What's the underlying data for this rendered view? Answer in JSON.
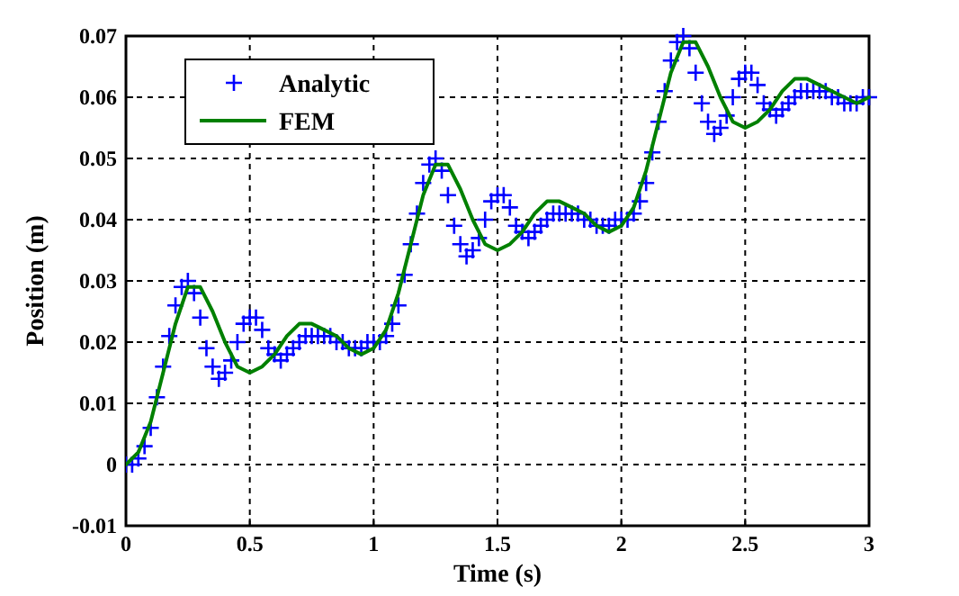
{
  "chart_data": {
    "type": "line",
    "xlabel": "Time (s)",
    "ylabel": "Position (m)",
    "xlim": [
      0,
      3
    ],
    "ylim": [
      -0.01,
      0.07
    ],
    "xticks": [
      0,
      0.5,
      1,
      1.5,
      2,
      2.5,
      3
    ],
    "yticks": [
      -0.01,
      0,
      0.01,
      0.02,
      0.03,
      0.04,
      0.05,
      0.06,
      0.07
    ],
    "grid": true,
    "legend": "top left",
    "series": [
      {
        "name": "Analytic",
        "type": "scatter",
        "marker": "cross",
        "color": "#0000ff",
        "x": [
          0,
          0.025,
          0.05,
          0.075,
          0.1,
          0.125,
          0.15,
          0.175,
          0.2,
          0.225,
          0.25,
          0.275,
          0.3,
          0.325,
          0.35,
          0.375,
          0.4,
          0.425,
          0.45,
          0.475,
          0.5,
          0.525,
          0.55,
          0.575,
          0.6,
          0.625,
          0.65,
          0.675,
          0.7,
          0.725,
          0.75,
          0.775,
          0.8,
          0.825,
          0.85,
          0.875,
          0.9,
          0.925,
          0.95,
          0.975,
          1,
          1.025,
          1.05,
          1.075,
          1.1,
          1.125,
          1.15,
          1.175,
          1.2,
          1.225,
          1.25,
          1.275,
          1.3,
          1.325,
          1.35,
          1.375,
          1.4,
          1.425,
          1.45,
          1.475,
          1.5,
          1.525,
          1.55,
          1.575,
          1.6,
          1.625,
          1.65,
          1.675,
          1.7,
          1.725,
          1.75,
          1.775,
          1.8,
          1.825,
          1.85,
          1.875,
          1.9,
          1.925,
          1.95,
          1.975,
          2,
          2.025,
          2.05,
          2.075,
          2.1,
          2.125,
          2.15,
          2.175,
          2.2,
          2.225,
          2.25,
          2.275,
          2.3,
          2.325,
          2.35,
          2.375,
          2.4,
          2.425,
          2.45,
          2.475,
          2.5,
          2.525,
          2.55,
          2.575,
          2.6,
          2.625,
          2.65,
          2.675,
          2.7,
          2.725,
          2.75,
          2.775,
          2.8,
          2.825,
          2.85,
          2.875,
          2.9,
          2.925,
          2.95,
          2.975,
          3
        ],
        "values": [
          0,
          0,
          0.001,
          0.003,
          0.006,
          0.011,
          0.016,
          0.021,
          0.026,
          0.029,
          0.03,
          0.028,
          0.024,
          0.019,
          0.016,
          0.014,
          0.015,
          0.017,
          0.02,
          0.023,
          0.024,
          0.024,
          0.022,
          0.019,
          0.018,
          0.017,
          0.018,
          0.019,
          0.02,
          0.021,
          0.021,
          0.021,
          0.021,
          0.021,
          0.02,
          0.02,
          0.019,
          0.019,
          0.019,
          0.02,
          0.02,
          0.02,
          0.021,
          0.023,
          0.026,
          0.031,
          0.036,
          0.041,
          0.046,
          0.049,
          0.05,
          0.048,
          0.044,
          0.039,
          0.036,
          0.034,
          0.035,
          0.037,
          0.04,
          0.043,
          0.044,
          0.044,
          0.042,
          0.039,
          0.038,
          0.037,
          0.038,
          0.039,
          0.04,
          0.041,
          0.041,
          0.041,
          0.041,
          0.041,
          0.04,
          0.04,
          0.039,
          0.039,
          0.039,
          0.04,
          0.04,
          0.04,
          0.041,
          0.043,
          0.046,
          0.051,
          0.056,
          0.061,
          0.066,
          0.069,
          0.07,
          0.068,
          0.064,
          0.059,
          0.056,
          0.054,
          0.055,
          0.057,
          0.06,
          0.063,
          0.064,
          0.064,
          0.062,
          0.059,
          0.058,
          0.057,
          0.058,
          0.059,
          0.06,
          0.061,
          0.061,
          0.061,
          0.061,
          0.061,
          0.06,
          0.06,
          0.059,
          0.059,
          0.059,
          0.06,
          0.06
        ]
      },
      {
        "name": "FEM",
        "marker": "none",
        "line_style": "solid",
        "color": "#008000",
        "x": [
          0,
          0.05,
          0.1,
          0.15,
          0.2,
          0.25,
          0.3,
          0.35,
          0.4,
          0.45,
          0.5,
          0.55,
          0.6,
          0.65,
          0.7,
          0.75,
          0.8,
          0.85,
          0.9,
          0.95,
          1,
          1.05,
          1.1,
          1.15,
          1.2,
          1.25,
          1.3,
          1.35,
          1.4,
          1.45,
          1.5,
          1.55,
          1.6,
          1.65,
          1.7,
          1.75,
          1.8,
          1.85,
          1.9,
          1.95,
          2,
          2.05,
          2.1,
          2.15,
          2.2,
          2.25,
          2.3,
          2.35,
          2.4,
          2.45,
          2.5,
          2.55,
          2.6,
          2.65,
          2.7,
          2.75,
          2.8,
          2.85,
          2.9,
          2.95,
          3
        ],
        "values": [
          0,
          0.002,
          0.007,
          0.015,
          0.023,
          0.029,
          0.029,
          0.025,
          0.02,
          0.016,
          0.015,
          0.016,
          0.018,
          0.021,
          0.023,
          0.023,
          0.022,
          0.021,
          0.019,
          0.018,
          0.019,
          0.022,
          0.028,
          0.036,
          0.044,
          0.049,
          0.049,
          0.045,
          0.04,
          0.036,
          0.035,
          0.036,
          0.038,
          0.041,
          0.043,
          0.043,
          0.042,
          0.041,
          0.039,
          0.038,
          0.039,
          0.042,
          0.048,
          0.056,
          0.064,
          0.069,
          0.069,
          0.065,
          0.06,
          0.056,
          0.055,
          0.056,
          0.058,
          0.061,
          0.063,
          0.063,
          0.062,
          0.061,
          0.06,
          0.059,
          0.06
        ]
      }
    ]
  }
}
